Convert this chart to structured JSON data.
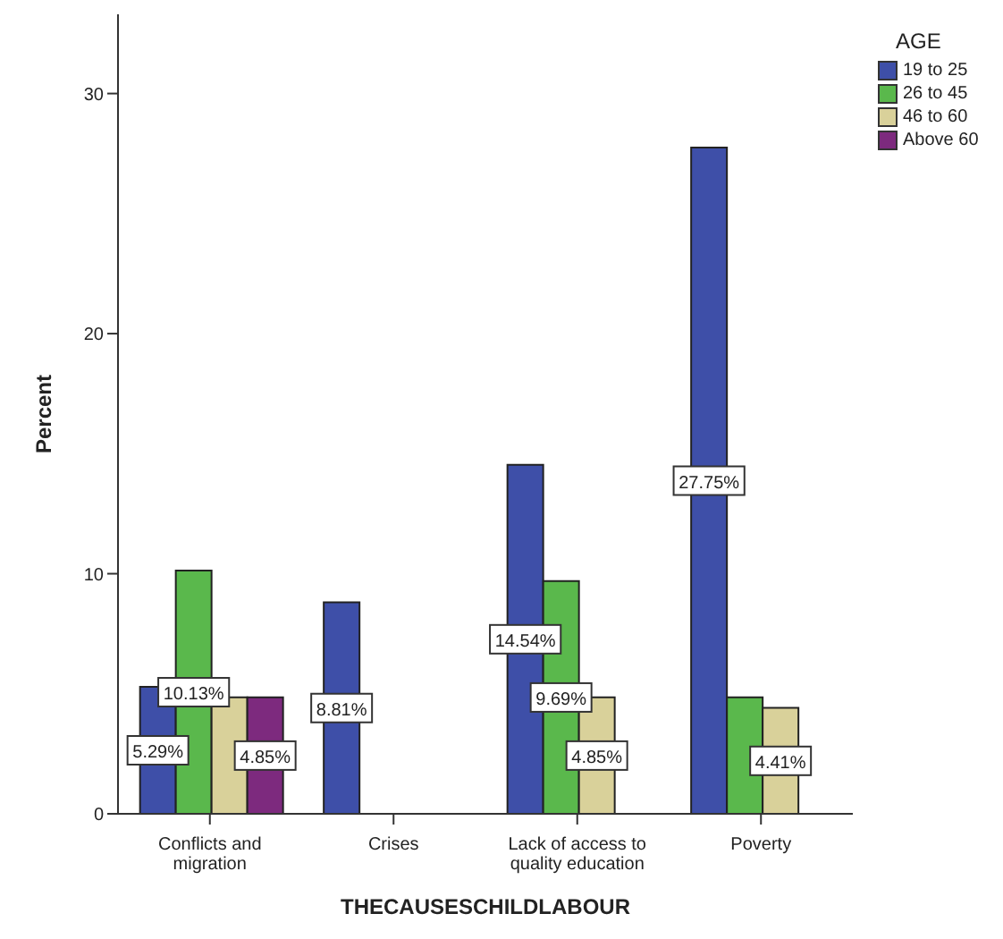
{
  "chart_data": {
    "type": "bar",
    "xlabel": "THECAUSESCHILDLABOUR",
    "ylabel": "Percent",
    "legend_title": "AGE",
    "legend": "top right",
    "grid": false,
    "categories": [
      "Conflicts and migration",
      "Crises",
      "Lack of access to quality education",
      "Poverty"
    ],
    "series": [
      {
        "name": "19 to 25",
        "color": "#3e4fa8",
        "values": [
          5.29,
          8.81,
          14.54,
          27.75
        ],
        "value_labels": [
          "5.29%",
          "8.81%",
          "14.54%",
          "27.75%"
        ]
      },
      {
        "name": "26 to 45",
        "color": "#5ab84c",
        "values": [
          10.13,
          null,
          9.69,
          4.85
        ],
        "value_labels": [
          "10.13%",
          null,
          "9.69%",
          null
        ]
      },
      {
        "name": "46 to 60",
        "color": "#d9d19a",
        "values": [
          4.85,
          null,
          4.85,
          4.41
        ],
        "value_labels": [
          null,
          null,
          "4.85%",
          "4.41%"
        ]
      },
      {
        "name": "Above 60",
        "color": "#7d2a7e",
        "values": [
          4.85,
          null,
          null,
          null
        ],
        "value_labels": [
          "4.85%",
          null,
          null,
          null
        ]
      }
    ],
    "ylim": [
      0,
      33.3
    ],
    "yticks": [
      0,
      10,
      20,
      30
    ]
  }
}
